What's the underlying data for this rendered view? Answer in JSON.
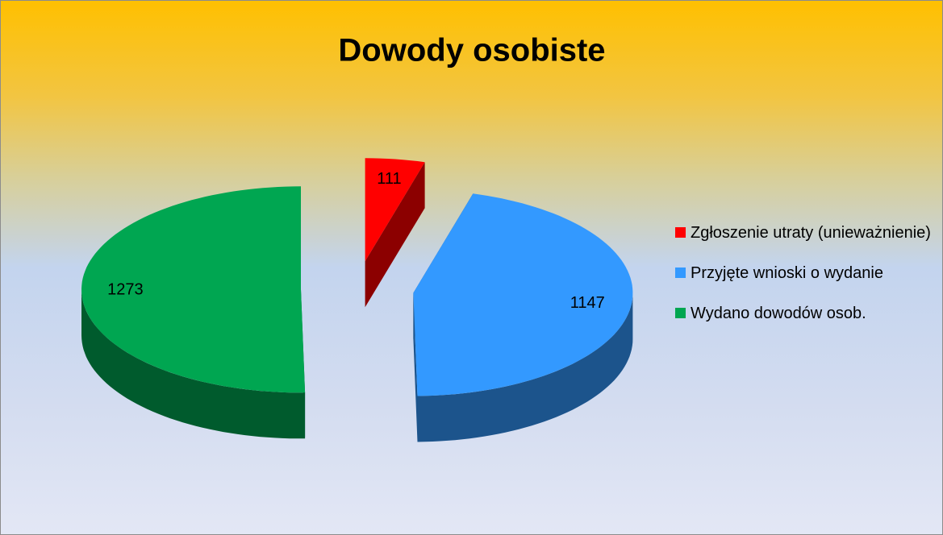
{
  "chart_data": {
    "type": "pie",
    "title": "Dowody osobiste",
    "categories": [
      "Zgłoszenie utraty (unieważnienie)",
      "Przyjęte wnioski o wydanie",
      "Wydano dowodów osob."
    ],
    "values": [
      111,
      1147,
      1273
    ],
    "colors": [
      "#ff0000",
      "#3399ff",
      "#00a651"
    ]
  }
}
